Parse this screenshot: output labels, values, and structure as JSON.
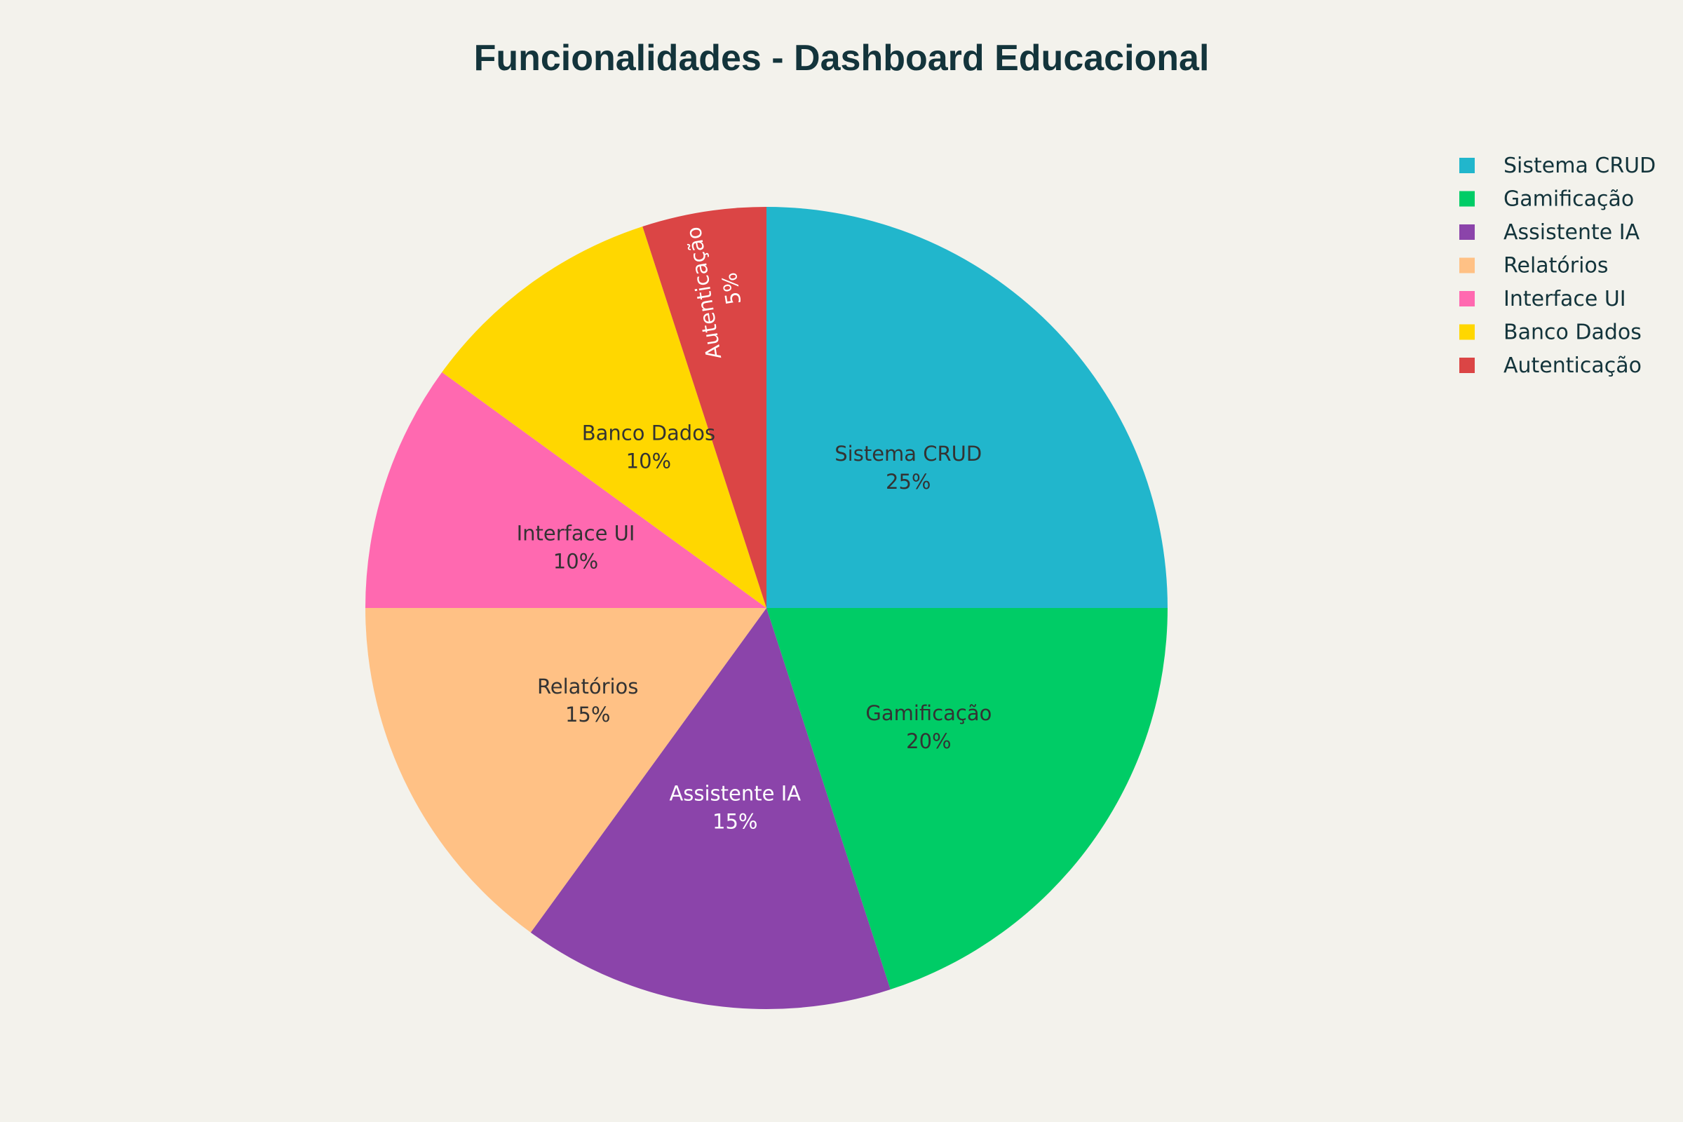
{
  "chart_data": {
    "type": "pie",
    "title": "Funcionalidades - Dashboard Educacional",
    "categories": [
      "Sistema CRUD",
      "Gamificação",
      "Assistente IA",
      "Relatórios",
      "Interface UI",
      "Banco Dados",
      "Autenticação"
    ],
    "values": [
      25,
      20,
      15,
      15,
      10,
      10,
      5
    ],
    "value_labels": [
      "25%",
      "20%",
      "15%",
      "15%",
      "10%",
      "10%",
      "5%"
    ],
    "colors": [
      "#21b6cc",
      "#00cc66",
      "#8b44aa",
      "#ffc185",
      "#ff69b0",
      "#ffd700",
      "#db4545"
    ],
    "label_colors": [
      "#333333",
      "#333333",
      "#ffffff",
      "#333333",
      "#333333",
      "#333333",
      "#ffffff"
    ],
    "direction": "clockwise",
    "start_angle": "12 o'clock",
    "legend_position": "top-right",
    "background": "#f3f2ec"
  }
}
